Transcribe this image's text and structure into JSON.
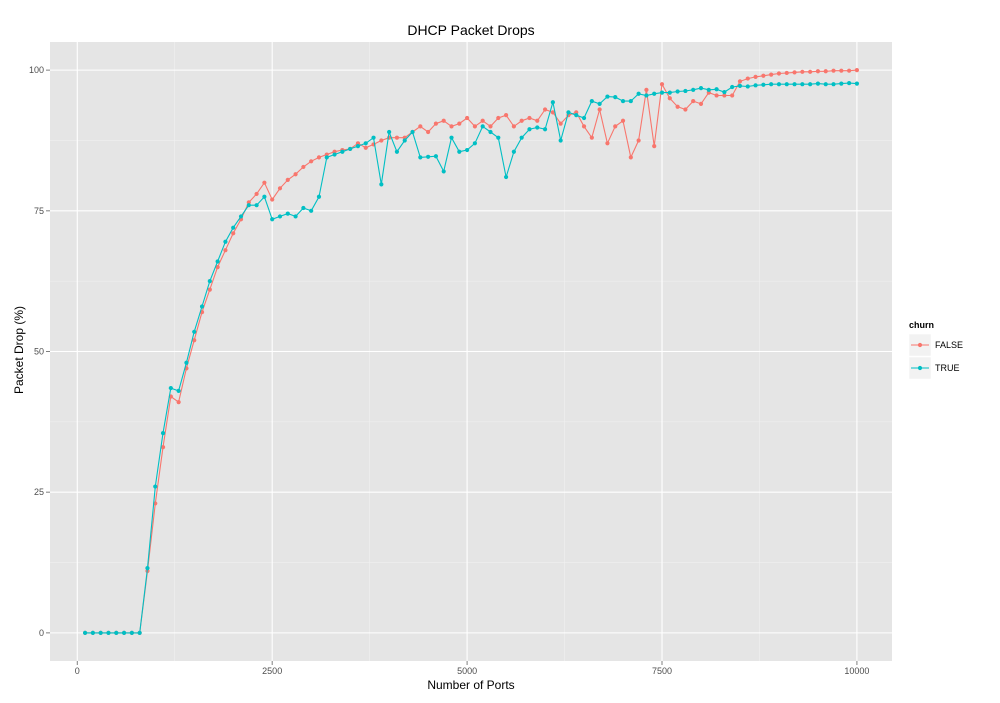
{
  "chart_data": {
    "type": "line",
    "title": "DHCP Packet Drops",
    "xlabel": "Number of Ports",
    "ylabel": "Packet Drop (%)",
    "xlim": [
      -350,
      10450
    ],
    "ylim": [
      -5,
      105
    ],
    "x_ticks": [
      0,
      2500,
      5000,
      7500,
      10000
    ],
    "x_tick_labels": [
      "0",
      "2500",
      "5000",
      "7500",
      "10000"
    ],
    "y_ticks": [
      0,
      25,
      50,
      75,
      100
    ],
    "y_tick_labels": [
      "0",
      "25",
      "50",
      "75",
      "100"
    ],
    "grid": true,
    "legend": {
      "title": "churn",
      "placement": "right"
    },
    "x": [
      100,
      200,
      300,
      400,
      500,
      600,
      700,
      800,
      900,
      1000,
      1100,
      1200,
      1300,
      1400,
      1500,
      1600,
      1700,
      1800,
      1900,
      2000,
      2100,
      2200,
      2300,
      2400,
      2500,
      2600,
      2700,
      2800,
      2900,
      3000,
      3100,
      3200,
      3300,
      3400,
      3500,
      3600,
      3700,
      3800,
      3900,
      4000,
      4100,
      4200,
      4300,
      4400,
      4500,
      4600,
      4700,
      4800,
      4900,
      5000,
      5100,
      5200,
      5300,
      5400,
      5500,
      5600,
      5700,
      5800,
      5900,
      6000,
      6100,
      6200,
      6300,
      6400,
      6500,
      6600,
      6700,
      6800,
      6900,
      7000,
      7100,
      7200,
      7300,
      7400,
      7500,
      7600,
      7700,
      7800,
      7900,
      8000,
      8100,
      8200,
      8300,
      8400,
      8500,
      8600,
      8700,
      8800,
      8900,
      9000,
      9100,
      9200,
      9300,
      9400,
      9500,
      9600,
      9700,
      9800,
      9900,
      10000
    ],
    "series": [
      {
        "name": "FALSE",
        "color": "#f8766d",
        "values": [
          0,
          0,
          0,
          0,
          0,
          0,
          0,
          0,
          11,
          23,
          33,
          42,
          41,
          47,
          52,
          57,
          61,
          65,
          68,
          71,
          73.5,
          76.5,
          78,
          80,
          77,
          79,
          80.5,
          81.5,
          82.8,
          83.8,
          84.5,
          85,
          85.5,
          85.8,
          86,
          87,
          86.2,
          86.8,
          87.5,
          88,
          88,
          88,
          89,
          90,
          89,
          90.5,
          91,
          90,
          90.5,
          91.5,
          90,
          91,
          90,
          91.5,
          92,
          90,
          91,
          91.5,
          91,
          93,
          92.5,
          90.5,
          92,
          92.5,
          90,
          88,
          93,
          87,
          90,
          91,
          84.5,
          87.5,
          96.5,
          86.5,
          97.5,
          95,
          93.5,
          93,
          94.5,
          94,
          96,
          95.5,
          95.5,
          95.5,
          98,
          98.5,
          98.8,
          99,
          99.2,
          99.4,
          99.5,
          99.6,
          99.7,
          99.7,
          99.8,
          99.8,
          99.9,
          99.9,
          99.9,
          100
        ]
      },
      {
        "name": "TRUE",
        "color": "#00bfc4",
        "values": [
          0,
          0,
          0,
          0,
          0,
          0,
          0,
          0,
          11.5,
          26,
          35.5,
          43.5,
          43,
          48,
          53.5,
          58,
          62.5,
          66,
          69.5,
          72,
          74,
          76,
          76,
          77.5,
          73.5,
          74,
          74.5,
          74,
          75.5,
          75,
          77.5,
          84.5,
          85,
          85.5,
          86,
          86.5,
          87,
          88,
          79.7,
          89,
          85.5,
          87.5,
          89,
          84.5,
          84.6,
          84.7,
          82,
          88,
          85.5,
          85.8,
          87,
          90,
          89,
          88,
          81,
          85.5,
          88,
          89.5,
          89.8,
          89.5,
          94.3,
          87.5,
          92.5,
          92,
          91.5,
          94.5,
          94,
          95.3,
          95.2,
          94.5,
          94.5,
          95.8,
          95.5,
          95.8,
          96,
          96,
          96.2,
          96.3,
          96.5,
          96.8,
          96.5,
          96.6,
          96.1,
          97,
          97.2,
          97.1,
          97.3,
          97.4,
          97.5,
          97.5,
          97.5,
          97.5,
          97.5,
          97.5,
          97.6,
          97.5,
          97.5,
          97.6,
          97.7,
          97.6
        ]
      }
    ]
  }
}
